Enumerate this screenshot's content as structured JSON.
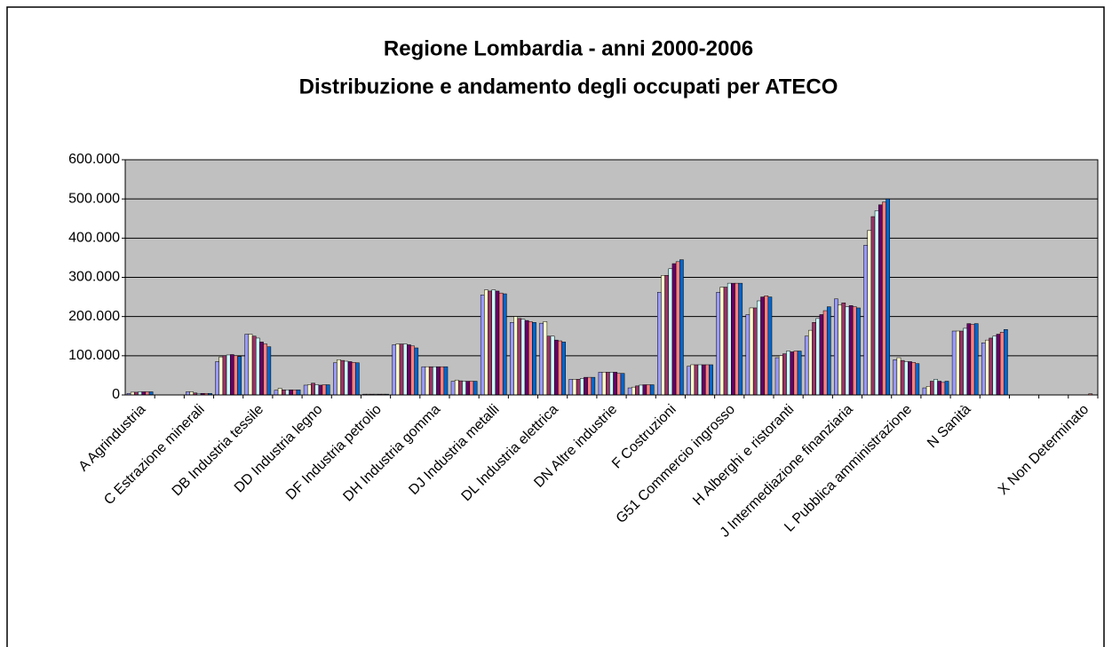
{
  "chart_data": {
    "type": "bar",
    "title": "Regione Lombardia - anni 2000-2006",
    "subtitle": "Distribuzione e andamento degli occupati per ATECO",
    "categories": [
      "A Agrindustria",
      null,
      "C Estrazione minerali",
      null,
      "DB Industria tessile",
      null,
      "DD Industria legno",
      null,
      "DF Industria petrolio",
      null,
      "DH Industria gomma",
      null,
      "DJ Industria metalli",
      null,
      "DL Industria elettrica",
      null,
      "DN Altre industrie",
      null,
      "F Costruzioni",
      null,
      "G51 Commercio ingrosso",
      null,
      "H Alberghi e ristoranti",
      null,
      "J Intermediazione finanziaria",
      null,
      "L Pubblica amministrazione",
      null,
      "N Sanità",
      null,
      null,
      null,
      "X Non Determinato"
    ],
    "series": [
      {
        "color": "#9999FF",
        "values": [
          4000,
          0,
          8000,
          85000,
          155000,
          12000,
          25000,
          82000,
          2000,
          128000,
          72000,
          35000,
          255000,
          185000,
          183000,
          40000,
          58000,
          18000,
          262000,
          73000,
          262000,
          205000,
          95000,
          150000,
          245000,
          382000,
          90000,
          18000,
          163000,
          133000,
          0,
          0,
          0
        ]
      },
      {
        "color": "#FFFFCC",
        "values": [
          7000,
          0,
          8000,
          97000,
          155000,
          17000,
          26000,
          90000,
          2000,
          130000,
          72000,
          38000,
          268000,
          200000,
          187000,
          40000,
          58000,
          20000,
          305000,
          77000,
          275000,
          222000,
          100000,
          165000,
          230000,
          420000,
          95000,
          22000,
          163000,
          140000,
          0,
          0,
          0
        ]
      },
      {
        "color": "#993366",
        "values": [
          7000,
          0,
          5000,
          100000,
          150000,
          13000,
          30000,
          88000,
          2000,
          130000,
          72000,
          36000,
          265000,
          195000,
          150000,
          40000,
          58000,
          23000,
          305000,
          77000,
          275000,
          222000,
          105000,
          185000,
          235000,
          455000,
          88000,
          35000,
          163000,
          145000,
          0,
          0,
          0
        ]
      },
      {
        "color": "#CCFFFF",
        "values": [
          8000,
          0,
          4000,
          102000,
          145000,
          13000,
          26000,
          86000,
          2000,
          130000,
          72000,
          35000,
          268000,
          193000,
          150000,
          42000,
          58000,
          25000,
          322000,
          77000,
          285000,
          240000,
          112000,
          195000,
          225000,
          470000,
          85000,
          40000,
          170000,
          150000,
          0,
          0,
          0
        ]
      },
      {
        "color": "#660066",
        "values": [
          8000,
          0,
          4000,
          103000,
          135000,
          13000,
          25000,
          85000,
          2000,
          128000,
          72000,
          35000,
          265000,
          190000,
          140000,
          45000,
          58000,
          26000,
          335000,
          77000,
          285000,
          250000,
          110000,
          205000,
          228000,
          485000,
          85000,
          35000,
          182000,
          155000,
          0,
          0,
          0
        ]
      },
      {
        "color": "#FF8080",
        "values": [
          8000,
          0,
          4000,
          100000,
          130000,
          13000,
          26000,
          83000,
          2000,
          125000,
          72000,
          35000,
          260000,
          187000,
          138000,
          45000,
          55000,
          26000,
          340000,
          77000,
          285000,
          253000,
          112000,
          215000,
          225000,
          492000,
          83000,
          32000,
          180000,
          160000,
          0,
          0,
          3000
        ]
      },
      {
        "color": "#0066CC",
        "values": [
          8000,
          0,
          4000,
          98000,
          123000,
          13000,
          26000,
          82000,
          2000,
          120000,
          72000,
          35000,
          258000,
          185000,
          135000,
          45000,
          55000,
          26000,
          345000,
          77000,
          285000,
          250000,
          112000,
          225000,
          222000,
          500000,
          80000,
          35000,
          182000,
          167000,
          0,
          0,
          0
        ]
      }
    ],
    "ylim": [
      0,
      600000
    ],
    "yticks": [
      0,
      {
        "value": 100000,
        "label": "100.000"
      },
      {
        "value": 200000,
        "label": "200.000"
      },
      {
        "value": 300000,
        "label": "300.000"
      },
      {
        "value": 400000,
        "label": "400.000"
      },
      {
        "value": 500000,
        "label": "500.000"
      },
      {
        "value": 600000,
        "label": "600.000"
      }
    ],
    "grid": true
  }
}
